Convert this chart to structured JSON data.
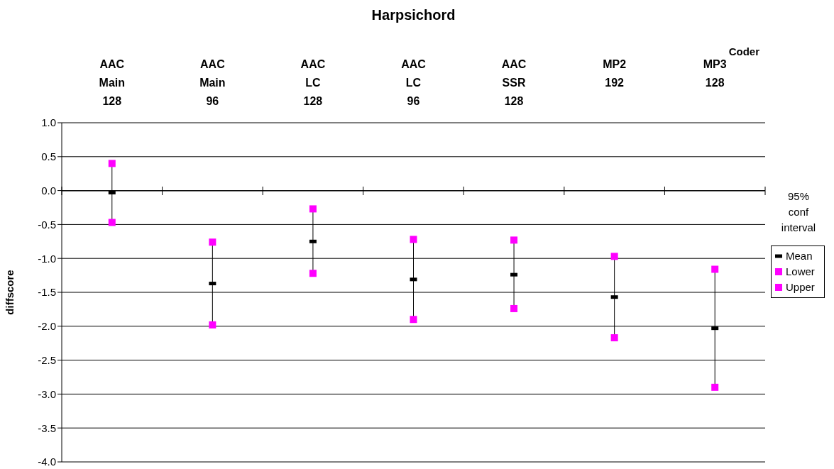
{
  "chart_data": {
    "type": "scatter",
    "title": "Harpsichord",
    "xlabel": "Coder",
    "ylabel": "diffscore",
    "legend_title": "95% conf interval",
    "categories": [
      "AAC Main 128",
      "AAC Main 96",
      "AAC LC 128",
      "AAC LC 96",
      "AAC SSR 128",
      "MP2 192",
      "MP3 128"
    ],
    "series": [
      {
        "name": "Mean",
        "color": "#000000",
        "values": [
          -0.03,
          -1.37,
          -0.75,
          -1.31,
          -1.24,
          -1.57,
          -2.03
        ]
      },
      {
        "name": "Lower",
        "color": "#ff00ff",
        "marker": "square",
        "values": [
          -0.47,
          -1.98,
          -1.22,
          -1.9,
          -1.74,
          -2.17,
          -2.9
        ]
      },
      {
        "name": "Upper",
        "color": "#ff00ff",
        "marker": "square",
        "values": [
          0.4,
          -0.76,
          -0.27,
          -0.72,
          -0.73,
          -0.97,
          -1.16
        ]
      }
    ],
    "ylim": [
      -4,
      1
    ],
    "yticks": [
      {
        "value": -4,
        "label": "-4.0"
      },
      -3.5,
      {
        "value": -3,
        "label": "-3.0"
      },
      -2.5,
      {
        "value": -2,
        "label": "-2.0"
      },
      -1.5,
      {
        "value": -1,
        "label": "-1.0"
      },
      -0.5,
      {
        "value": 0,
        "label": "0.0"
      },
      0.5,
      {
        "value": 1,
        "label": "1.0"
      }
    ],
    "grid": "y",
    "legend": "right"
  }
}
